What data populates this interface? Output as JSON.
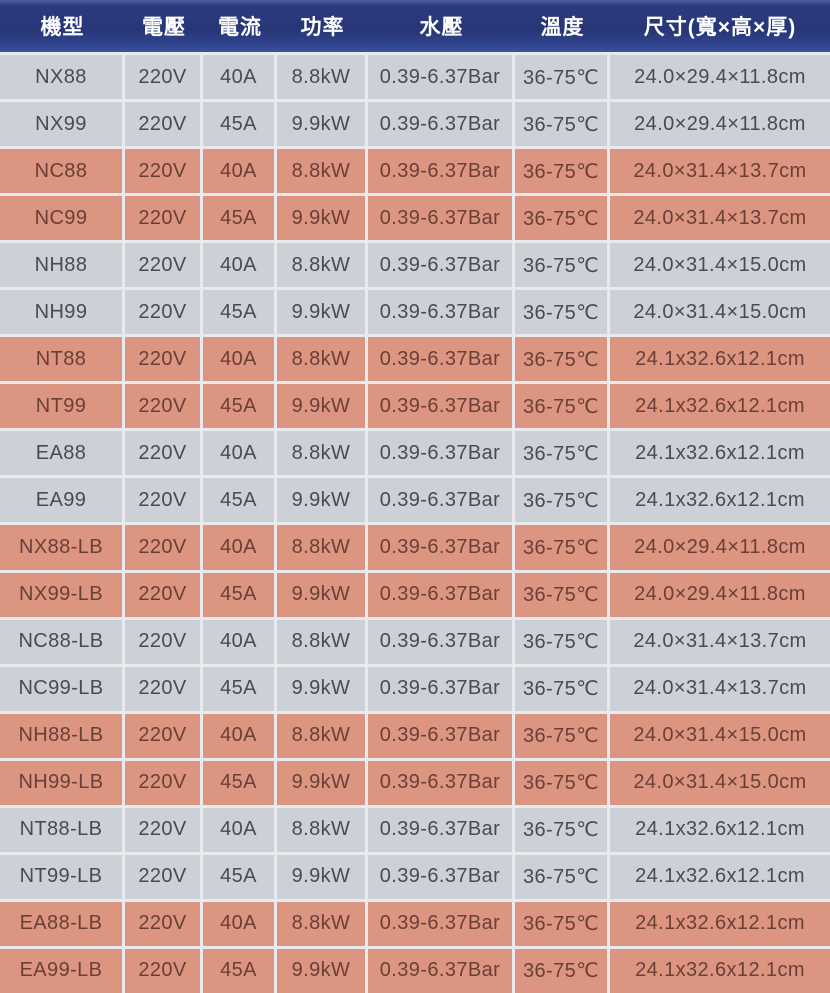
{
  "table": {
    "columns": [
      {
        "key": "model",
        "label": "機型"
      },
      {
        "key": "voltage",
        "label": "電壓"
      },
      {
        "key": "current",
        "label": "電流"
      },
      {
        "key": "power",
        "label": "功率"
      },
      {
        "key": "pressure",
        "label": "水壓"
      },
      {
        "key": "temperature",
        "label": "溫度"
      },
      {
        "key": "dimensions",
        "label": "尺寸(寬×高×厚)"
      }
    ],
    "rows": [
      {
        "model": "NX88",
        "voltage": "220V",
        "current": "40A",
        "power": "8.8kW",
        "pressure": "0.39-6.37Bar",
        "temperature": "36-75℃",
        "dimensions": "24.0×29.4×11.8cm",
        "highlight": false
      },
      {
        "model": "NX99",
        "voltage": "220V",
        "current": "45A",
        "power": "9.9kW",
        "pressure": "0.39-6.37Bar",
        "temperature": "36-75℃",
        "dimensions": "24.0×29.4×11.8cm",
        "highlight": false
      },
      {
        "model": "NC88",
        "voltage": "220V",
        "current": "40A",
        "power": "8.8kW",
        "pressure": "0.39-6.37Bar",
        "temperature": "36-75℃",
        "dimensions": "24.0×31.4×13.7cm",
        "highlight": true
      },
      {
        "model": "NC99",
        "voltage": "220V",
        "current": "45A",
        "power": "9.9kW",
        "pressure": "0.39-6.37Bar",
        "temperature": "36-75℃",
        "dimensions": "24.0×31.4×13.7cm",
        "highlight": true
      },
      {
        "model": "NH88",
        "voltage": "220V",
        "current": "40A",
        "power": "8.8kW",
        "pressure": "0.39-6.37Bar",
        "temperature": "36-75℃",
        "dimensions": "24.0×31.4×15.0cm",
        "highlight": false
      },
      {
        "model": "NH99",
        "voltage": "220V",
        "current": "45A",
        "power": "9.9kW",
        "pressure": "0.39-6.37Bar",
        "temperature": "36-75℃",
        "dimensions": "24.0×31.4×15.0cm",
        "highlight": false
      },
      {
        "model": "NT88",
        "voltage": "220V",
        "current": "40A",
        "power": "8.8kW",
        "pressure": "0.39-6.37Bar",
        "temperature": "36-75℃",
        "dimensions": "24.1x32.6x12.1cm",
        "highlight": true
      },
      {
        "model": "NT99",
        "voltage": "220V",
        "current": "45A",
        "power": "9.9kW",
        "pressure": "0.39-6.37Bar",
        "temperature": "36-75℃",
        "dimensions": "24.1x32.6x12.1cm",
        "highlight": true
      },
      {
        "model": "EA88",
        "voltage": "220V",
        "current": "40A",
        "power": "8.8kW",
        "pressure": "0.39-6.37Bar",
        "temperature": "36-75℃",
        "dimensions": "24.1x32.6x12.1cm",
        "highlight": false
      },
      {
        "model": "EA99",
        "voltage": "220V",
        "current": "45A",
        "power": "9.9kW",
        "pressure": "0.39-6.37Bar",
        "temperature": "36-75℃",
        "dimensions": "24.1x32.6x12.1cm",
        "highlight": false
      },
      {
        "model": "NX88-LB",
        "voltage": "220V",
        "current": "40A",
        "power": "8.8kW",
        "pressure": "0.39-6.37Bar",
        "temperature": "36-75℃",
        "dimensions": "24.0×29.4×11.8cm",
        "highlight": true
      },
      {
        "model": "NX99-LB",
        "voltage": "220V",
        "current": "45A",
        "power": "9.9kW",
        "pressure": "0.39-6.37Bar",
        "temperature": "36-75℃",
        "dimensions": "24.0×29.4×11.8cm",
        "highlight": true
      },
      {
        "model": "NC88-LB",
        "voltage": "220V",
        "current": "40A",
        "power": "8.8kW",
        "pressure": "0.39-6.37Bar",
        "temperature": "36-75℃",
        "dimensions": "24.0×31.4×13.7cm",
        "highlight": false
      },
      {
        "model": "NC99-LB",
        "voltage": "220V",
        "current": "45A",
        "power": "9.9kW",
        "pressure": "0.39-6.37Bar",
        "temperature": "36-75℃",
        "dimensions": "24.0×31.4×13.7cm",
        "highlight": false
      },
      {
        "model": "NH88-LB",
        "voltage": "220V",
        "current": "40A",
        "power": "8.8kW",
        "pressure": "0.39-6.37Bar",
        "temperature": "36-75℃",
        "dimensions": "24.0×31.4×15.0cm",
        "highlight": true
      },
      {
        "model": "NH99-LB",
        "voltage": "220V",
        "current": "45A",
        "power": "9.9kW",
        "pressure": "0.39-6.37Bar",
        "temperature": "36-75℃",
        "dimensions": "24.0×31.4×15.0cm",
        "highlight": true
      },
      {
        "model": "NT88-LB",
        "voltage": "220V",
        "current": "40A",
        "power": "8.8kW",
        "pressure": "0.39-6.37Bar",
        "temperature": "36-75℃",
        "dimensions": "24.1x32.6x12.1cm",
        "highlight": false
      },
      {
        "model": "NT99-LB",
        "voltage": "220V",
        "current": "45A",
        "power": "9.9kW",
        "pressure": "0.39-6.37Bar",
        "temperature": "36-75℃",
        "dimensions": "24.1x32.6x12.1cm",
        "highlight": false
      },
      {
        "model": "EA88-LB",
        "voltage": "220V",
        "current": "40A",
        "power": "8.8kW",
        "pressure": "0.39-6.37Bar",
        "temperature": "36-75℃",
        "dimensions": "24.1x32.6x12.1cm",
        "highlight": true
      },
      {
        "model": "EA99-LB",
        "voltage": "220V",
        "current": "45A",
        "power": "9.9kW",
        "pressure": "0.39-6.37Bar",
        "temperature": "36-75℃",
        "dimensions": "24.1x32.6x12.1cm",
        "highlight": true
      }
    ]
  },
  "colors": {
    "header_bg": "#283677",
    "header_text": "#ffffff",
    "row_gray_bg": "#ccd0d7",
    "row_pink_bg": "#dc9580",
    "row_gray_text": "#474b52",
    "row_pink_text": "#6b3f36",
    "divider": "#e8eaed"
  }
}
